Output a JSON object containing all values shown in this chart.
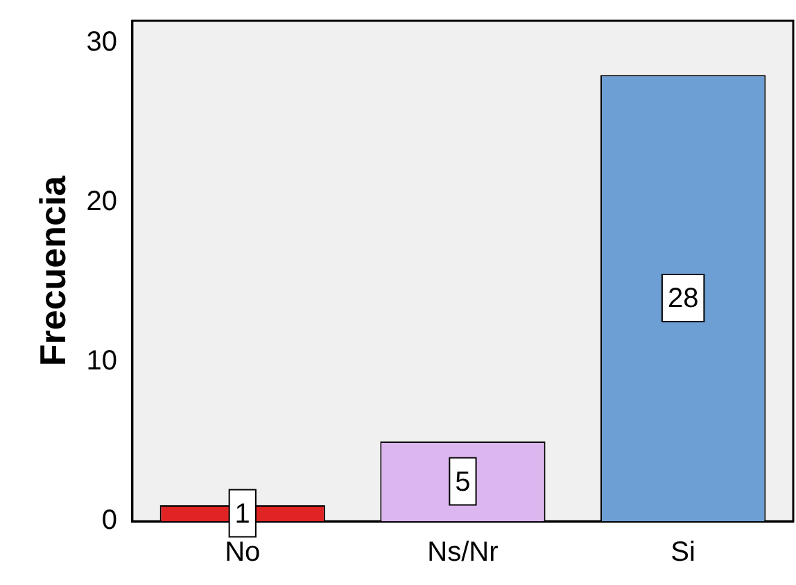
{
  "chart_data": {
    "type": "bar",
    "ylabel": "Frecuencia",
    "categories": [
      "No",
      "Ns/Nr",
      "Si"
    ],
    "values": [
      1,
      5,
      28
    ],
    "colors": [
      "#e02424",
      "#dcb6ee",
      "#6d9fd4"
    ],
    "ylim": [
      0,
      31.4
    ],
    "yticks": [
      0,
      10,
      20,
      30
    ],
    "grid": false,
    "legend": false,
    "data_labels": true
  }
}
